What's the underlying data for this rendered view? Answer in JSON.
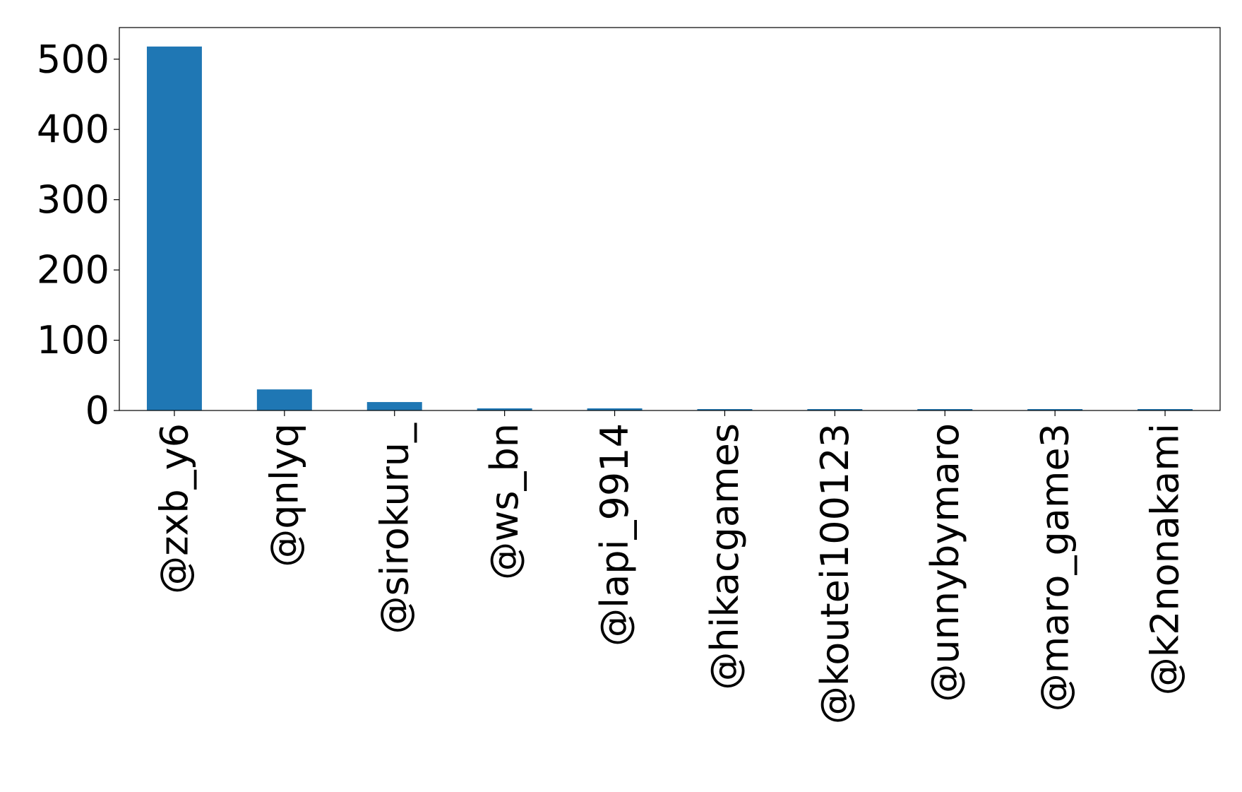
{
  "chart_data": {
    "type": "bar",
    "title": "",
    "xlabel": "",
    "ylabel": "",
    "categories": [
      "@zxb_y6",
      "@qnlyq",
      "@sirokuru_",
      "@ws_bn",
      "@lapi_9914",
      "@hikacgames",
      "@koutei100123",
      "@unnybymaro",
      "@maro_game3",
      "@k2nonakami"
    ],
    "values": [
      518,
      30,
      12,
      3,
      3,
      2,
      2,
      2,
      2,
      2
    ],
    "ylim": [
      0,
      545
    ],
    "yticks": [
      0,
      100,
      200,
      300,
      400,
      500
    ],
    "ytick_labels": [
      "0",
      "100",
      "200",
      "300",
      "400",
      "500"
    ],
    "grid": false,
    "legend": "none",
    "bar_color": "#1f77b4"
  }
}
